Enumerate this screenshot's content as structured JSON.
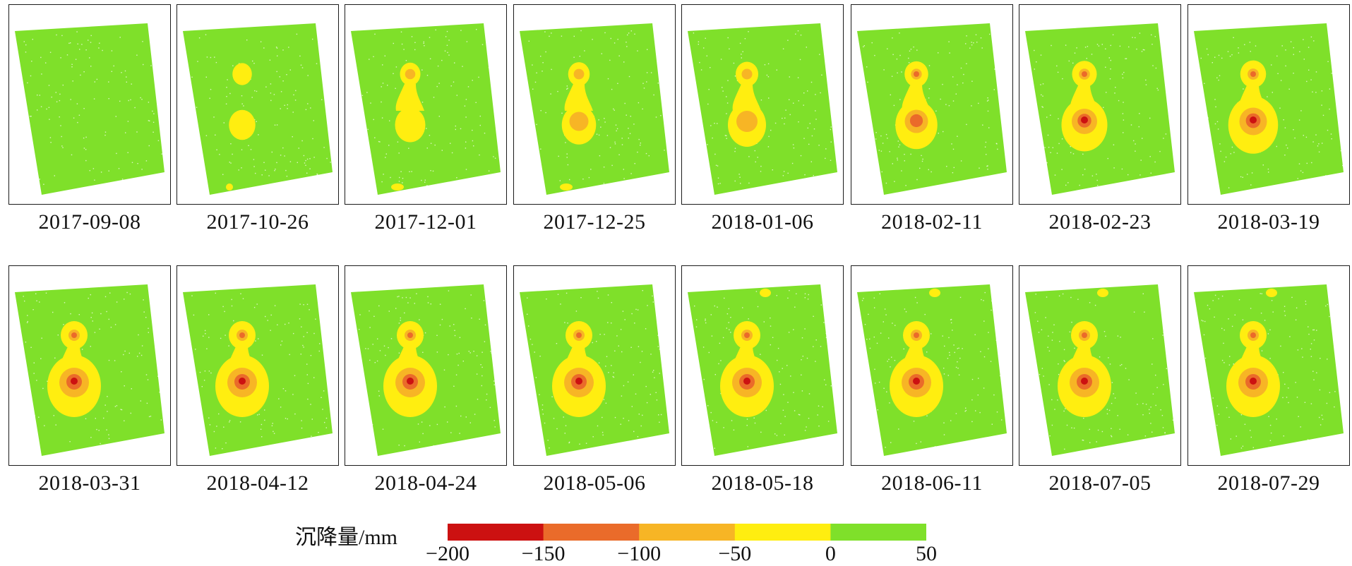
{
  "colors": {
    "stable": "#7fe02a",
    "c_50_0": "#ffee10",
    "c_100_50": "#f7b525",
    "c_150_100": "#ea6b2a",
    "c_200_150": "#cc1111",
    "speckle": "#ffffff"
  },
  "legend": {
    "title": "沉降量/mm",
    "ticks": [
      "−200",
      "−150",
      "−100",
      "−50",
      "0",
      "50"
    ],
    "ramp": [
      "#cc1111",
      "#ea6b2a",
      "#f7b525",
      "#ffee10",
      "#7fe02a"
    ]
  },
  "panels": [
    {
      "date": "2017-09-08",
      "stage": 0,
      "north_patch": false
    },
    {
      "date": "2017-10-26",
      "stage": 1,
      "north_patch": false
    },
    {
      "date": "2017-12-01",
      "stage": 2,
      "north_patch": false
    },
    {
      "date": "2017-12-25",
      "stage": 3,
      "north_patch": false
    },
    {
      "date": "2018-01-06",
      "stage": 4,
      "north_patch": false
    },
    {
      "date": "2018-02-11",
      "stage": 5,
      "north_patch": false
    },
    {
      "date": "2018-02-23",
      "stage": 6,
      "north_patch": false
    },
    {
      "date": "2018-03-19",
      "stage": 7,
      "north_patch": false
    },
    {
      "date": "2018-03-31",
      "stage": 8,
      "north_patch": false
    },
    {
      "date": "2018-04-12",
      "stage": 9,
      "north_patch": false
    },
    {
      "date": "2018-04-24",
      "stage": 10,
      "north_patch": false
    },
    {
      "date": "2018-05-06",
      "stage": 11,
      "north_patch": false
    },
    {
      "date": "2018-05-18",
      "stage": 12,
      "north_patch": true
    },
    {
      "date": "2018-06-11",
      "stage": 13,
      "north_patch": true
    },
    {
      "date": "2018-07-05",
      "stage": 14,
      "north_patch": true
    },
    {
      "date": "2018-07-29",
      "stage": 15,
      "north_patch": true
    }
  ]
}
